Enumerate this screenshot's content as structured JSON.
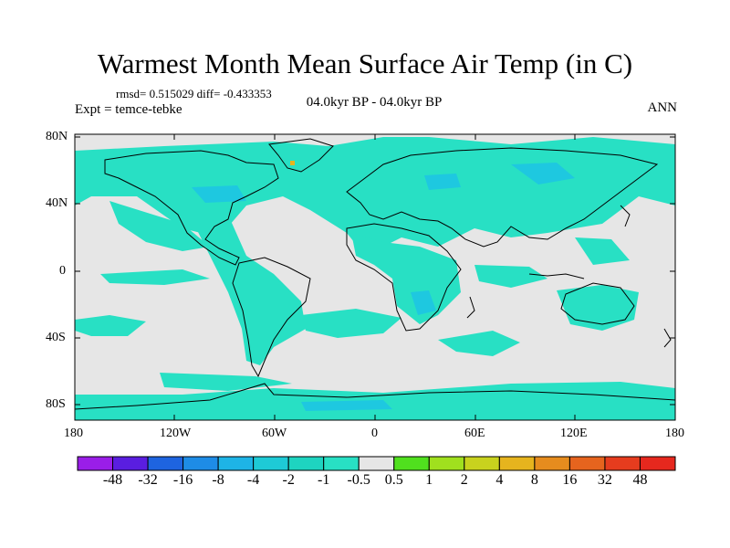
{
  "title": "Warmest Month Mean Surface Air Temp (in C)",
  "stats": "rmsd= 0.515029 diff= -0.433353",
  "expt": "Expt = temce-tebke",
  "center_label": "04.0kyr BP - 04.0kyr BP",
  "season": "ANN",
  "lat_ticks": [
    "80N",
    "40N",
    "0",
    "40S",
    "80S"
  ],
  "lon_ticks": [
    "180",
    "120W",
    "60W",
    "0",
    "60E",
    "120E",
    "180"
  ],
  "colorbar": {
    "labels": [
      "-48",
      "-32",
      "-16",
      "-8",
      "-4",
      "-2",
      "-1",
      "-0.5",
      "0.5",
      "1",
      "2",
      "4",
      "8",
      "16",
      "32",
      "48"
    ],
    "colors": [
      "#9a1ee8",
      "#5a1ee0",
      "#1e64e0",
      "#1e8ce6",
      "#1eb4e6",
      "#1ecad6",
      "#1ed4c0",
      "#28e0c4",
      "#e6e6e6",
      "#50e01e",
      "#a0e01e",
      "#c8d21e",
      "#e6b41e",
      "#e68c1e",
      "#e6641e",
      "#e63c1e",
      "#e6281e"
    ]
  },
  "colors": {
    "ocean_neutral": "#e6e6e6",
    "anomaly_teal": "#28e0c4",
    "anomaly_blue": "#1ec8e0",
    "coast": "#000000"
  }
}
